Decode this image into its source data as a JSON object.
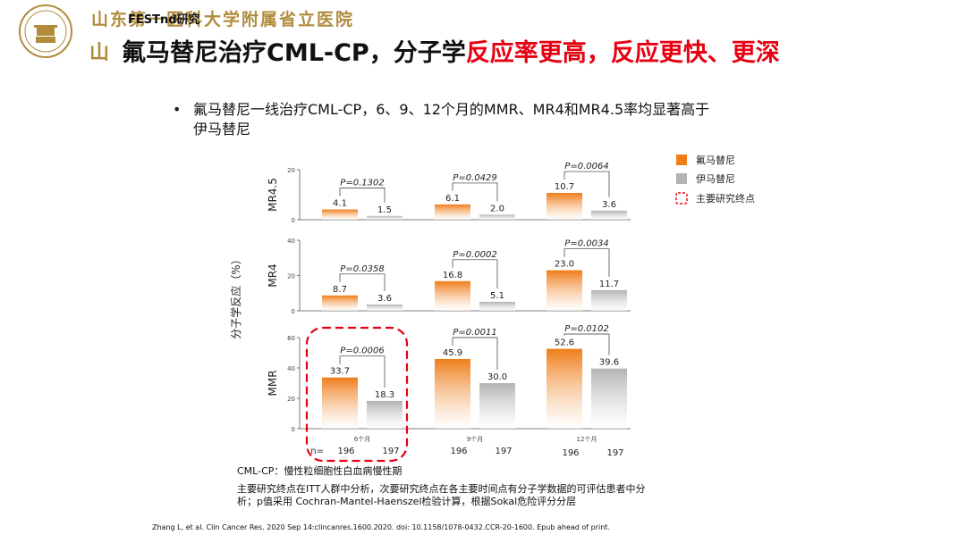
{
  "header": {
    "hospital_name": "山东第一医科大学附属省立医院",
    "watermark": "FESTnd研究",
    "title_bullet": "山",
    "title_black": "氟马替尼治疗CML-CP，分子学",
    "title_red": "反应率更高，反应更快、更深"
  },
  "bullet": {
    "line1": "氟马替尼一线治疗CML-CP，6、9、12个月的MMR、MR4和MR4.5率均显著高于",
    "line2": "伊马替尼"
  },
  "colors": {
    "flumatinib": "#ef7d1a",
    "imatinib": "#b3b3b3",
    "title_red": "#e60012",
    "gold": "#b08c3c"
  },
  "chart_data": {
    "type": "bar",
    "ylabel": "分子学反应（%）",
    "categories": [
      "6个月",
      "9个月",
      "12个月"
    ],
    "legend": {
      "position": "top-right",
      "items": [
        "氟马替尼",
        "伊马替尼",
        "主要研究终点"
      ]
    },
    "n_label": "n=",
    "n_values": [
      196,
      197,
      196,
      197,
      196,
      197
    ],
    "panels": [
      {
        "name": "MR4.5",
        "ylim": [
          0,
          20
        ],
        "ticks": [
          0,
          20
        ],
        "series": [
          {
            "name": "氟马替尼",
            "values": [
              4.1,
              6.1,
              10.7
            ]
          },
          {
            "name": "伊马替尼",
            "values": [
              1.5,
              2.0,
              3.6
            ]
          }
        ],
        "value_labels": [
          [
            "4.1",
            "1.5"
          ],
          [
            "6.1",
            "2.0"
          ],
          [
            "10.7",
            "3.6"
          ]
        ],
        "p_values": [
          "P=0.1302",
          "P=0.0429",
          "P=0.0064"
        ]
      },
      {
        "name": "MR4",
        "ylim": [
          0,
          40
        ],
        "ticks": [
          0,
          20,
          40
        ],
        "series": [
          {
            "name": "氟马替尼",
            "values": [
              8.7,
              16.8,
              23.0
            ]
          },
          {
            "name": "伊马替尼",
            "values": [
              3.6,
              5.1,
              11.7
            ]
          }
        ],
        "value_labels": [
          [
            "8.7",
            "3.6"
          ],
          [
            "16.8",
            "5.1"
          ],
          [
            "23.0",
            "11.7"
          ]
        ],
        "p_values": [
          "P=0.0358",
          "P=0.0002",
          "P=0.0034"
        ]
      },
      {
        "name": "MMR",
        "ylim": [
          0,
          60
        ],
        "ticks": [
          0,
          20,
          40,
          60
        ],
        "series": [
          {
            "name": "氟马替尼",
            "values": [
              33.7,
              45.9,
              52.6
            ]
          },
          {
            "name": "伊马替尼",
            "values": [
              18.3,
              30.0,
              39.6
            ]
          }
        ],
        "value_labels": [
          [
            "33.7",
            "18.3"
          ],
          [
            "45.9",
            "30.0"
          ],
          [
            "52.6",
            "39.6"
          ]
        ],
        "p_values": [
          "P=0.0006",
          "P=0.0011",
          "P=0.0102"
        ]
      }
    ]
  },
  "footnotes": {
    "line1": "CML-CP：慢性粒细胞性白血病慢性期",
    "line2a": "主要研究终点在ITT人群中分析，次要研究终点在各主要时间点有分子学数据的可评估患者中分",
    "line2b": "析；p值采用 Cochran-Mantel-Haenszel检验计算，根据Sokal危险评分分层"
  },
  "citation": "Zhang L, et al. Clin Cancer Res. 2020 Sep 14:clincanres.1600.2020. doi: 10.1158/1078-0432.CCR-20-1600. Epub ahead of print."
}
